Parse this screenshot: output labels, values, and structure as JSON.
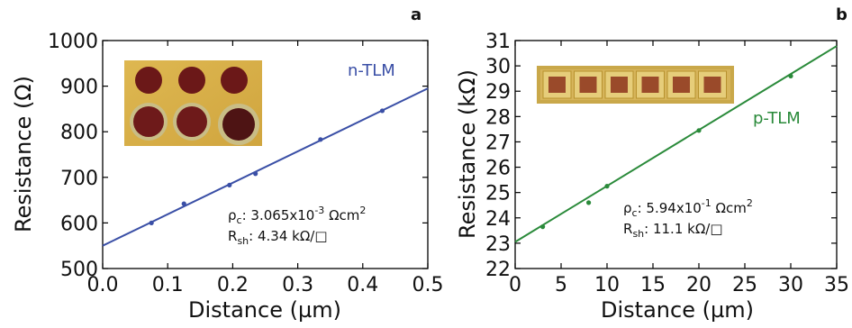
{
  "chart_data": [
    {
      "panel_letter": "a",
      "type": "scatter",
      "series_label": "n-TLM",
      "series_color": "#3a4fa6",
      "xlabel": "Distance (µm)",
      "ylabel": "Resistance (Ω)",
      "xlim": [
        0.0,
        0.5
      ],
      "ylim": [
        500,
        1000
      ],
      "xticks": [
        "0.0",
        "0.1",
        "0.2",
        "0.3",
        "0.4",
        "0.5"
      ],
      "yticks": [
        "500",
        "600",
        "700",
        "800",
        "900",
        "1000"
      ],
      "points": {
        "x": [
          0.075,
          0.125,
          0.195,
          0.235,
          0.335,
          0.43
        ],
        "y": [
          600,
          642,
          683,
          708,
          783,
          846
        ]
      },
      "fit": {
        "intercept": 550,
        "slope": 690
      },
      "annotation": {
        "rho_symbol": "ρ",
        "rho_sub": "c",
        "rho_prefix": ": 3.065x10",
        "rho_exp": "-3",
        "rho_unit": " Ωcm",
        "rho_unit_exp": "2",
        "r_symbol": "R",
        "r_sub": "sh",
        "r_text": ": 4.34 kΩ/□"
      },
      "inset": "n-TLM circular pads photo"
    },
    {
      "panel_letter": "b",
      "type": "scatter",
      "series_label": "p-TLM",
      "series_color": "#2a8a3a",
      "xlabel": "Distance (µm)",
      "ylabel": "Resistance (kΩ)",
      "xlim": [
        0,
        35
      ],
      "ylim": [
        22,
        31
      ],
      "xticks": [
        "0",
        "5",
        "10",
        "15",
        "20",
        "25",
        "30",
        "35"
      ],
      "yticks": [
        "22",
        "23",
        "24",
        "25",
        "26",
        "27",
        "28",
        "29",
        "30",
        "31"
      ],
      "points": {
        "x": [
          3,
          8,
          10,
          20,
          30
        ],
        "y": [
          23.65,
          24.6,
          25.25,
          27.45,
          29.6
        ]
      },
      "fit": {
        "intercept": 23.05,
        "slope": 0.221
      },
      "annotation": {
        "rho_symbol": "ρ",
        "rho_sub": "c",
        "rho_prefix": ": 5.94x10",
        "rho_exp": "-1",
        "rho_unit": " Ωcm",
        "rho_unit_exp": "2",
        "r_symbol": "R",
        "r_sub": "sh",
        "r_text": ": 11.1 kΩ/□"
      },
      "inset": "p-TLM square pads photo"
    }
  ]
}
